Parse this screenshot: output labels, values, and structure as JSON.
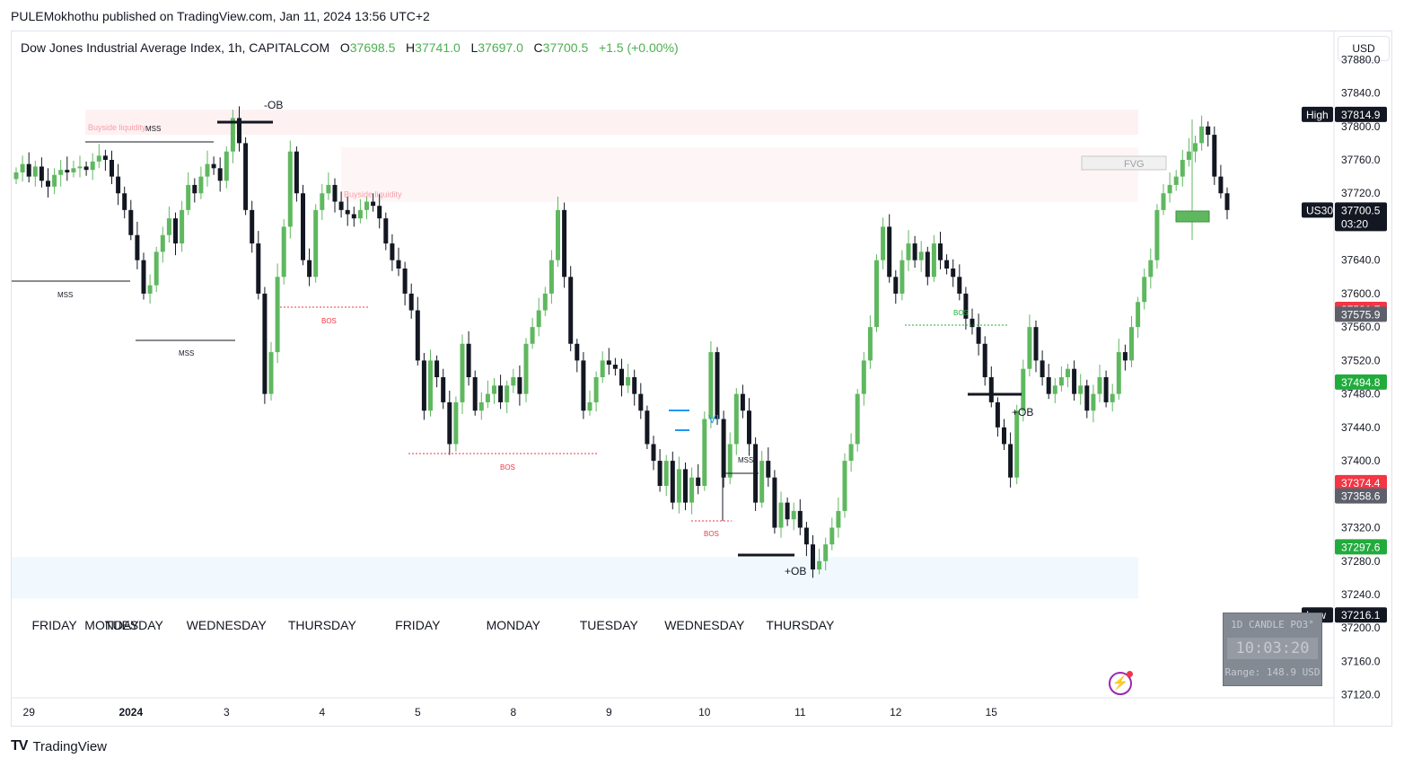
{
  "header": {
    "published": "PULEMokhothu published on TradingView.com, Jan 11, 2024 13:56 UTC+2",
    "symbol": "Dow Jones Industrial Average Index, 1h, CAPITALCOM",
    "o_label": "O",
    "o_value": "37698.5",
    "h_label": "H",
    "h_value": "37741.0",
    "l_label": "L",
    "l_value": "37697.0",
    "c_label": "C",
    "c_value": "37700.5",
    "change": "+1.5 (+0.00%)"
  },
  "currency_button": "USD",
  "brand": "TradingView",
  "widget": {
    "title": "1D CANDLE PO3°",
    "timer": "10:03:20",
    "range": "Range: 148.9 USD"
  },
  "chart_data": {
    "type": "candlestick",
    "title": "Dow Jones Industrial Average Index, 1h, CAPITALCOM",
    "ylim": [
      37110,
      37890
    ],
    "y_ticks": [
      "37880.0",
      "37840.0",
      "37800.0",
      "37760.0",
      "37720.0",
      "37680.0",
      "37640.0",
      "37600.0",
      "37560.0",
      "37520.0",
      "37480.0",
      "37440.0",
      "37400.0",
      "37360.0",
      "37320.0",
      "37280.0",
      "37240.0",
      "37200.0",
      "37160.0",
      "37120.0"
    ],
    "x_ticks": [
      {
        "label": "29",
        "i": 2
      },
      {
        "label": "2024",
        "i": 18
      },
      {
        "label": "3",
        "i": 33
      },
      {
        "label": "4",
        "i": 48
      },
      {
        "label": "5",
        "i": 63
      },
      {
        "label": "8",
        "i": 78
      },
      {
        "label": "9",
        "i": 93
      },
      {
        "label": "10",
        "i": 108
      },
      {
        "label": "11",
        "i": 123
      },
      {
        "label": "12",
        "i": 138
      },
      {
        "label": "15",
        "i": 153
      }
    ],
    "day_labels": [
      {
        "label": "FRIDAY",
        "i": 6
      },
      {
        "label": "MONDAY",
        "i": 15
      },
      {
        "label": "TUESDAY",
        "i": 18.5
      },
      {
        "label": "WEDNESDAY",
        "i": 33
      },
      {
        "label": "THURSDAY",
        "i": 48
      },
      {
        "label": "FRIDAY",
        "i": 63
      },
      {
        "label": "MONDAY",
        "i": 78
      },
      {
        "label": "TUESDAY",
        "i": 93
      },
      {
        "label": "WEDNESDAY",
        "i": 108
      },
      {
        "label": "THURSDAY",
        "i": 123
      }
    ],
    "price_labels": [
      {
        "tag": "High",
        "value": "37814.9",
        "color": "#131722"
      },
      {
        "tag": "US30",
        "value": "37700.5",
        "sub": "03:20",
        "color": "#131722"
      },
      {
        "value": "37581.7",
        "color": "#f23645"
      },
      {
        "value": "37575.9",
        "color": "#5d606b"
      },
      {
        "value": "37494.8",
        "color": "#22ab3d"
      },
      {
        "value": "37374.4",
        "color": "#f23645"
      },
      {
        "value": "37358.6",
        "color": "#5d606b"
      },
      {
        "value": "37297.6",
        "color": "#22ab3d"
      },
      {
        "tag": "Low",
        "value": "37216.1",
        "color": "#131722"
      }
    ],
    "closes": [
      37745,
      37755,
      37740,
      37752,
      37735,
      37728,
      37742,
      37748,
      37745,
      37750,
      37752,
      37748,
      37758,
      37765,
      37760,
      37740,
      37720,
      37700,
      37670,
      37640,
      37600,
      37610,
      37650,
      37670,
      37690,
      37660,
      37700,
      37730,
      37720,
      37740,
      37755,
      37750,
      37735,
      37770,
      37810,
      37780,
      37700,
      37660,
      37600,
      37480,
      37530,
      37620,
      37680,
      37770,
      37720,
      37640,
      37620,
      37700,
      37720,
      37730,
      37710,
      37700,
      37695,
      37690,
      37700,
      37710,
      37705,
      37690,
      37660,
      37640,
      37630,
      37600,
      37580,
      37520,
      37460,
      37520,
      37500,
      37470,
      37420,
      37470,
      37540,
      37500,
      37460,
      37470,
      37480,
      37490,
      37470,
      37490,
      37500,
      37480,
      37540,
      37560,
      37580,
      37600,
      37640,
      37700,
      37620,
      37540,
      37520,
      37460,
      37470,
      37500,
      37520,
      37515,
      37510,
      37490,
      37500,
      37480,
      37460,
      37420,
      37400,
      37370,
      37400,
      37350,
      37390,
      37350,
      37380,
      37370,
      37450,
      37530,
      37450,
      37380,
      37420,
      37480,
      37460,
      37420,
      37350,
      37400,
      37380,
      37320,
      37350,
      37330,
      37340,
      37320,
      37300,
      37270,
      37280,
      37300,
      37320,
      37340,
      37400,
      37420,
      37480,
      37520,
      37560,
      37640,
      37680,
      37620,
      37600,
      37640,
      37660,
      37640,
      37650,
      37620,
      37660,
      37640,
      37630,
      37620,
      37600,
      37570,
      37560,
      37540,
      37500,
      37470,
      37440,
      37420,
      37380,
      37460,
      37510,
      37560,
      37520,
      37500,
      37480,
      37490,
      37500,
      37510,
      37480,
      37490,
      37460,
      37480,
      37500,
      37470,
      37480,
      37530,
      37520,
      37560,
      37590,
      37620,
      37640,
      37700,
      37720,
      37730,
      37740,
      37760,
      37770,
      37780,
      37800,
      37790,
      37740,
      37720,
      37700
    ],
    "zones": [
      {
        "name": "buyside-liquidity-upper",
        "label": "Buyside liquidity",
        "from": 37820,
        "to": 37790
      },
      {
        "name": "buyside-liquidity-lower",
        "label": "Buyside liquidity",
        "from": 37775,
        "to": 37710
      },
      {
        "name": "discount-zone",
        "label": "",
        "from": 37285,
        "to": 37235
      }
    ],
    "annotations": [
      "-OB",
      "MSS",
      "MSS",
      "MSS",
      "BOS",
      "BOS",
      "BOS",
      "BOS",
      "MSS",
      "VI",
      "+OB",
      "+OB",
      "FVG"
    ]
  }
}
